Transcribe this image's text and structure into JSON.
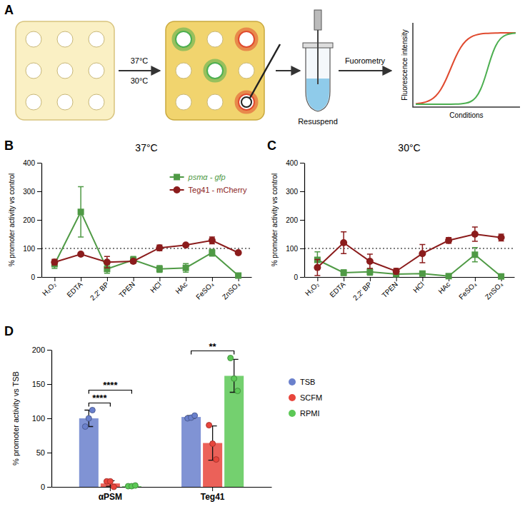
{
  "diagram": {
    "panel_label": "A",
    "temperatures": [
      "37°C",
      "30°C"
    ],
    "steps": [
      "Resuspend",
      "Fuorometry"
    ],
    "plot_axis_labels": {
      "y": "Fluorescence intensity",
      "x": "Conditions"
    }
  },
  "chart_data": [
    {
      "panel_label": "B",
      "type": "line",
      "title": "37°C",
      "y_label": "% promoter activity vs control",
      "categories": [
        "H₂O₂",
        "EDTA",
        "2,2' BP",
        "TPEN",
        "HCl",
        "HAc",
        "FeSO₄",
        "ZnSO₄"
      ],
      "series": [
        {
          "name": "psmα - gfp",
          "color": "#4f9a45",
          "marker": "square",
          "values": [
            45,
            228,
            28,
            60,
            28,
            32,
            85,
            5
          ],
          "error": [
            15,
            88,
            15,
            12,
            12,
            15,
            12,
            3
          ]
        },
        {
          "name": "Teg41 - mCherry",
          "color": "#8b1c1c",
          "marker": "circle",
          "values": [
            52,
            80,
            52,
            55,
            102,
            112,
            128,
            85
          ],
          "error": [
            10,
            3,
            20,
            5,
            10,
            4,
            12,
            3
          ]
        }
      ],
      "reference_line": 100,
      "ylim": [
        0,
        400
      ],
      "yticks": [
        0,
        100,
        200,
        300,
        400
      ],
      "legend": "upper right"
    },
    {
      "panel_label": "C",
      "type": "line",
      "title": "30°C",
      "y_label": "% promoter activity vs control",
      "categories": [
        "H₂O₂",
        "EDTA",
        "2,2' BP",
        "TPEN",
        "HCl",
        "HAc",
        "FeSO₄",
        "ZnSO₄"
      ],
      "series": [
        {
          "color": "#4f9a45",
          "marker": "square",
          "values": [
            60,
            15,
            18,
            10,
            12,
            3,
            78,
            2
          ],
          "error": [
            28,
            10,
            12,
            8,
            6,
            2,
            25,
            2
          ]
        },
        {
          "color": "#8b1c1c",
          "marker": "circle",
          "values": [
            33,
            120,
            55,
            20,
            82,
            128,
            150,
            138
          ],
          "error": [
            28,
            38,
            25,
            10,
            32,
            10,
            25,
            12
          ]
        }
      ],
      "reference_line": 100,
      "ylim": [
        0,
        400
      ],
      "yticks": [
        0,
        100,
        200,
        300,
        400
      ]
    },
    {
      "panel_label": "D",
      "type": "bar",
      "y_label": "% promoter activity vs TSB",
      "categories": [
        "αPSM",
        "Teg41"
      ],
      "series": [
        {
          "name": "TSB",
          "color": "#6a80cc",
          "values": [
            100,
            102
          ],
          "error": [
            12,
            2
          ],
          "points": [
            [
              88,
              100,
              112
            ],
            [
              100,
              101,
              104
            ]
          ]
        },
        {
          "name": "SCFM",
          "color": "#e8453c",
          "values": [
            5,
            64
          ],
          "error": [
            4,
            25
          ],
          "points": [
            [
              8,
              8,
              0
            ],
            [
              90,
              63,
              40
            ]
          ]
        },
        {
          "name": "RPMI",
          "color": "#5cc856",
          "values": [
            1,
            162
          ],
          "error": [
            1,
            24
          ],
          "points": [
            [
              1,
              1,
              2
            ],
            [
              188,
              158,
              140
            ]
          ]
        }
      ],
      "significance": [
        {
          "category": 0,
          "pair": [
            0,
            1
          ],
          "label": "****"
        },
        {
          "category": 0,
          "pair": [
            0,
            2
          ],
          "label": "****"
        },
        {
          "category": 1,
          "pair": [
            0,
            2
          ],
          "label": "**"
        }
      ],
      "ylim": [
        0,
        200
      ],
      "yticks": [
        0,
        50,
        100,
        150,
        200
      ],
      "legend": "right"
    }
  ]
}
